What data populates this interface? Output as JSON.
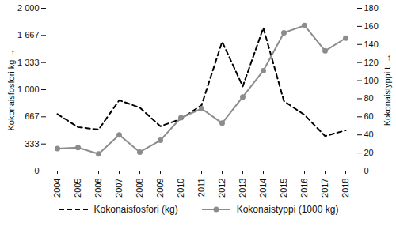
{
  "chart_data": {
    "type": "line",
    "categories": [
      "2004",
      "2005",
      "2006",
      "2007",
      "2008",
      "2009",
      "2010",
      "2011",
      "2012",
      "2013",
      "2014",
      "2015",
      "2016",
      "2017",
      "2018"
    ],
    "series": [
      {
        "name": "Kokonaisfosfori (kg)",
        "color": "#000000",
        "line_style": "dashed",
        "values": [
          700,
          540,
          510,
          870,
          780,
          550,
          640,
          810,
          1590,
          1040,
          1760,
          860,
          690,
          430,
          500
        ]
      },
      {
        "name": "Kokonaistyppi (1000 kg)",
        "color": "#8c8c8c",
        "line_style": "solid",
        "marker": "circle",
        "axis": "y2",
        "values": [
          25,
          26,
          19,
          40,
          21,
          34,
          59,
          69,
          53,
          82,
          111,
          153,
          161,
          133,
          147
        ]
      }
    ],
    "y_label": "Kokonaisfosfori kg",
    "y2_label": "Kokonaistyppi t.",
    "ylim": [
      0,
      2000
    ],
    "yticks": [
      0,
      333,
      667,
      {
        "value": 1000,
        "label": "1 000"
      },
      {
        "value": 1333,
        "label": "1 333"
      },
      {
        "value": 1667,
        "label": "1 667"
      },
      {
        "value": 2000,
        "label": "2 000"
      }
    ],
    "y2lim": [
      0,
      180
    ],
    "y2ticks": [
      0,
      20,
      40,
      60,
      80,
      100,
      120,
      140,
      160,
      180
    ],
    "legend": "bottom"
  }
}
